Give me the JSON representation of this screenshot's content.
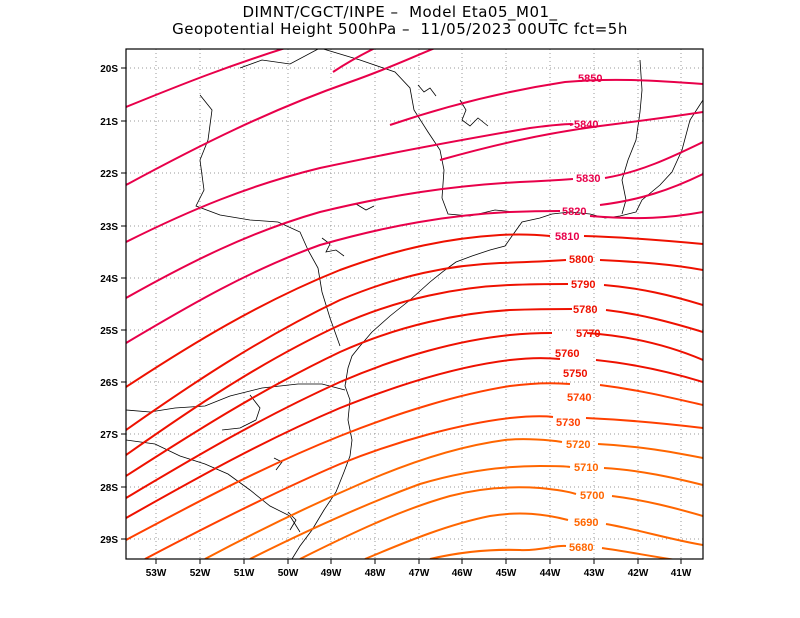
{
  "title": {
    "line1": "DIMNT/CGCT/INPE –  Model Eta05_M01_",
    "line2": "Geopotential Height 500hPa –  11/05/2023 00UTC fct=5h"
  },
  "map": {
    "lon_range": [
      -53.6,
      -40.5
    ],
    "lat_range": [
      -29.4,
      -19.9
    ],
    "lat_ticks": [
      "20S",
      "21S",
      "22S",
      "23S",
      "24S",
      "25S",
      "26S",
      "27S",
      "28S",
      "29S"
    ],
    "lon_ticks": [
      "53W",
      "52W",
      "51W",
      "50W",
      "49W",
      "48W",
      "47W",
      "46W",
      "45W",
      "44W",
      "43W",
      "42W",
      "41W"
    ],
    "grid": "dotted",
    "colors": {
      "coast": "#000000",
      "grid": "#9a9a9a",
      "high": "#e8004a",
      "mid": "#ee1100",
      "low": "#ff6600"
    },
    "contour_labels": [
      "5850",
      "5840",
      "5830",
      "5820",
      "5810",
      "5800",
      "5790",
      "5780",
      "5770",
      "5760",
      "5750",
      "5740",
      "5730",
      "5720",
      "5710",
      "5700",
      "5690",
      "5680"
    ]
  }
}
